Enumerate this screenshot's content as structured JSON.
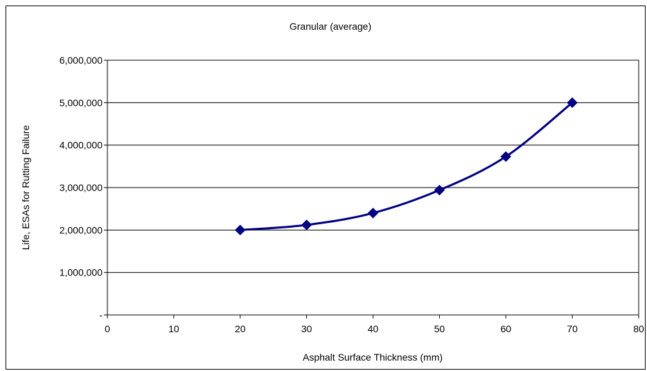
{
  "chart_data": {
    "type": "line",
    "title": "Granular (average)",
    "xlabel": "Asphalt Surface Thickness (mm)",
    "ylabel": "Life, ESAs for Rutting Failure",
    "xlim": [
      0,
      80
    ],
    "ylim": [
      0,
      6000000
    ],
    "x_ticks": [
      0,
      10,
      20,
      30,
      40,
      50,
      60,
      70,
      80
    ],
    "x_tick_labels": [
      "0",
      "10",
      "20",
      "30",
      "40",
      "50",
      "60",
      "70",
      "80"
    ],
    "y_ticks": [
      0,
      1000000,
      2000000,
      3000000,
      4000000,
      5000000,
      6000000
    ],
    "y_tick_labels": [
      "-",
      "1,000,000",
      "2,000,000",
      "3,000,000",
      "4,000,000",
      "5,000,000",
      "6,000,000"
    ],
    "grid": "horizontal",
    "marker": "diamond",
    "series": [
      {
        "x": [
          20,
          30,
          40,
          50,
          60,
          70
        ],
        "values": [
          2000000,
          2120000,
          2400000,
          2940000,
          3730000,
          5000000
        ],
        "color": "#000080"
      }
    ]
  }
}
